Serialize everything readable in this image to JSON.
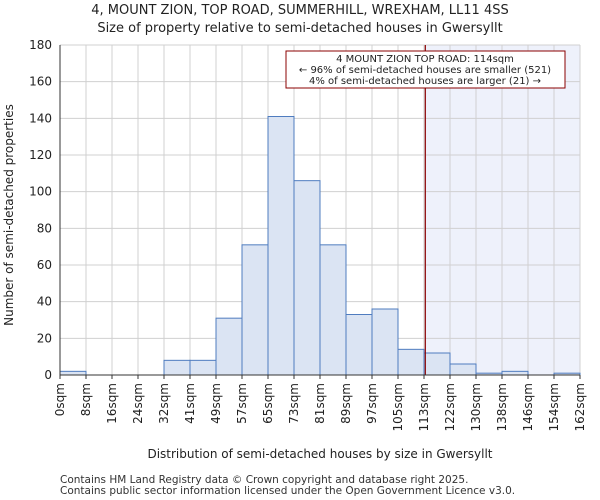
{
  "header": {
    "title_line1": "4, MOUNT ZION, TOP ROAD, SUMMERHILL, WREXHAM, LL11 4SS",
    "title_line2": "Size of property relative to semi-detached houses in Gwersyllt"
  },
  "footer": {
    "line1": "Contains HM Land Registry data © Crown copyright and database right 2025.",
    "line2": "Contains public sector information licensed under the Open Government Licence v3.0."
  },
  "chart_data": {
    "type": "bar",
    "title": "Size of property relative to semi-detached houses in Gwersyllt",
    "xlabel": "Distribution of semi-detached houses by size in Gwersyllt",
    "ylabel": "Number of semi-detached properties",
    "ylim": [
      0,
      180
    ],
    "yticks": [
      0,
      20,
      40,
      60,
      80,
      100,
      120,
      140,
      160,
      180
    ],
    "bin_edges": [
      "0sqm",
      "8sqm",
      "16sqm",
      "24sqm",
      "32sqm",
      "41sqm",
      "49sqm",
      "57sqm",
      "65sqm",
      "73sqm",
      "81sqm",
      "89sqm",
      "97sqm",
      "105sqm",
      "113sqm",
      "122sqm",
      "130sqm",
      "138sqm",
      "146sqm",
      "154sqm",
      "162sqm"
    ],
    "values": [
      2,
      0,
      0,
      0,
      8,
      8,
      31,
      71,
      141,
      106,
      71,
      33,
      36,
      14,
      12,
      6,
      1,
      2,
      0,
      1
    ],
    "grid": true,
    "property_marker": {
      "bin_position": 14.05
    },
    "annotation": {
      "line1": "4 MOUNT ZION TOP ROAD: 114sqm",
      "line2": "← 96% of semi-detached houses are smaller (521)",
      "line3": "4% of semi-detached houses are larger (21) →"
    },
    "colors": {
      "bar_fill": "#dbe4f3",
      "bar_stroke": "#4f7cbf",
      "marker": "#8b0000",
      "shade": "#eef1fb",
      "grid": "#d0d0d0"
    }
  }
}
